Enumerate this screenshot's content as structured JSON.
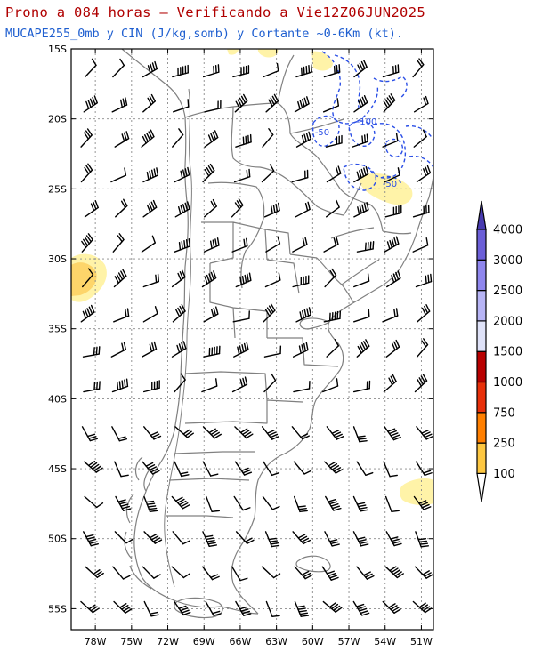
{
  "title": "Prono a 084 horas – Verificando a Vie12Z06JUN2025",
  "subtitle": "MUCAPE255_0mb y CIN (J/kg,somb) y Cortante ~0-6Km (kt).",
  "map": {
    "lon_range": [
      -80,
      -50
    ],
    "lat_range": [
      -56.5,
      -15
    ],
    "lat_ticks": [
      {
        "value": -15,
        "label": "15S"
      },
      {
        "value": -20,
        "label": "20S"
      },
      {
        "value": -25,
        "label": "25S"
      },
      {
        "value": -30,
        "label": "30S"
      },
      {
        "value": -35,
        "label": "35S"
      },
      {
        "value": -40,
        "label": "40S"
      },
      {
        "value": -45,
        "label": "45S"
      },
      {
        "value": -50,
        "label": "50S"
      },
      {
        "value": -55,
        "label": "55S"
      }
    ],
    "lon_ticks": [
      {
        "value": -78,
        "label": "78W"
      },
      {
        "value": -75,
        "label": "75W"
      },
      {
        "value": -72,
        "label": "72W"
      },
      {
        "value": -69,
        "label": "69W"
      },
      {
        "value": -66,
        "label": "66W"
      },
      {
        "value": -63,
        "label": "63W"
      },
      {
        "value": -60,
        "label": "60W"
      },
      {
        "value": -57,
        "label": "57W"
      },
      {
        "value": -54,
        "label": "54W"
      },
      {
        "value": -51,
        "label": "51W"
      }
    ],
    "cin_contour_labels": [
      "-50",
      "-100",
      "-50"
    ]
  },
  "colorbar": {
    "levels": [
      "100",
      "250",
      "750",
      "1000",
      "1500",
      "2000",
      "2500",
      "3000",
      "4000"
    ],
    "colors": [
      "#fff7bf",
      "#fdc741",
      "#ff7f00",
      "#e8300a",
      "#b80000",
      "#dfe2f8",
      "#b7b4f5",
      "#8f86ee",
      "#6c5fd8",
      "#483bb0"
    ]
  },
  "colors": {
    "title": "#b00000",
    "subtitle": "#1f5fd0",
    "cape_fill": "#fff3a8",
    "cape_fill_strong": "#fdd56a",
    "cin_contour": "#2b4fe6",
    "coast": "#808080",
    "grid": "#8a8a8a",
    "barb": "#000000"
  }
}
